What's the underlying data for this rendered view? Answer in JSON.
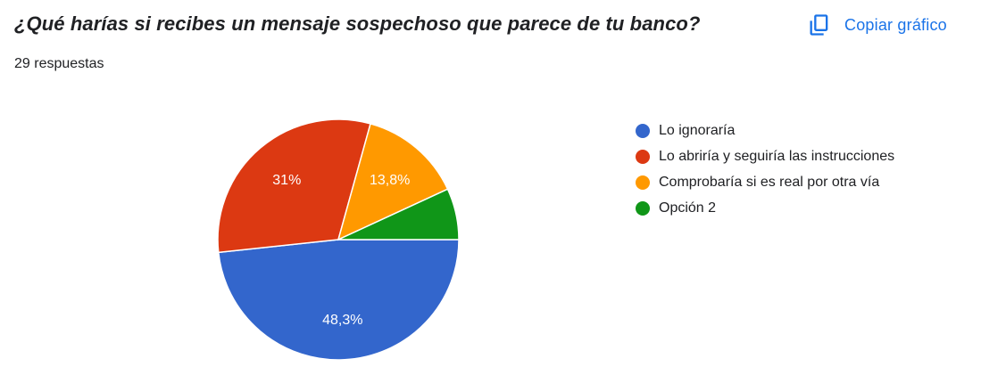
{
  "header": {
    "title": "¿Qué harías si recibes un mensaje sospechoso que parece de tu banco?",
    "responses": "29 respuestas",
    "copy_label": "Copiar gráfico",
    "copy_icon": "copy-icon"
  },
  "colors": {
    "accent": "#1a73e8",
    "slice_label": "#ffffff"
  },
  "chart_data": {
    "type": "pie",
    "categories": [
      "Lo ignoraría",
      "Lo abriría y seguiría las instrucciones",
      "Comprobaría si es real por otra vía",
      "Opción 2"
    ],
    "values": [
      48.3,
      31,
      13.8,
      6.9
    ],
    "labels": [
      "48,3%",
      "31%",
      "13,8%",
      ""
    ],
    "colors": [
      "#3366cc",
      "#dc3912",
      "#ff9900",
      "#109618"
    ],
    "legend_position": "right",
    "start": "3 o'clock, clockwise"
  }
}
